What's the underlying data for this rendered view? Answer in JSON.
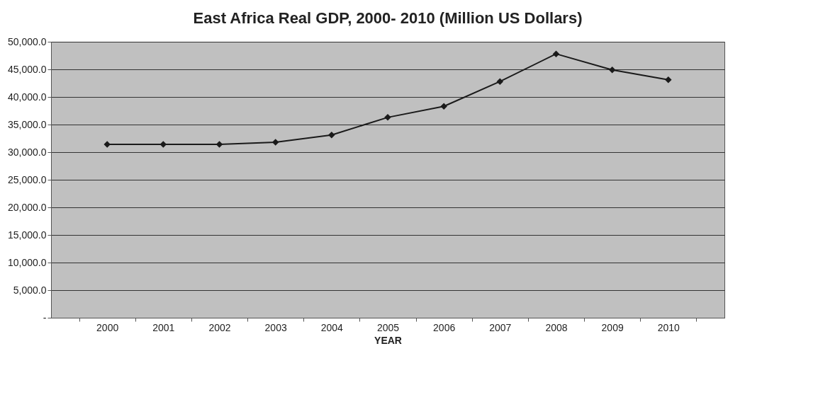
{
  "chart_data": {
    "type": "line",
    "title": "East Africa Real GDP, 2000- 2010 (Million US Dollars)",
    "xlabel": "YEAR",
    "categories": [
      "2000",
      "2001",
      "2002",
      "2003",
      "2004",
      "2005",
      "2006",
      "2007",
      "2008",
      "2009",
      "2010"
    ],
    "series": [
      {
        "color": "#1a1a1a",
        "values": [
          31400,
          31400,
          31400,
          31800,
          33100,
          36300,
          38300,
          42800,
          47800,
          44900,
          43100
        ]
      }
    ],
    "ylim": [
      0,
      50000
    ],
    "yticks": [
      {
        "value": 0,
        "label": "-"
      },
      {
        "value": 5000,
        "label": "5,000.0"
      },
      {
        "value": 10000,
        "label": "10,000.0"
      },
      {
        "value": 15000,
        "label": "15,000.0"
      },
      {
        "value": 20000,
        "label": "20,000.0"
      },
      {
        "value": 25000,
        "label": "25,000.0"
      },
      {
        "value": 30000,
        "label": "30,000.0"
      },
      {
        "value": 35000,
        "label": "35,000.0"
      },
      {
        "value": 40000,
        "label": "40,000.0"
      },
      {
        "value": 45000,
        "label": "45,000.0"
      },
      {
        "value": 50000,
        "label": "50,000.0"
      }
    ],
    "grid": "y",
    "legend": false,
    "marker": "diamond",
    "line_style": "solid"
  }
}
